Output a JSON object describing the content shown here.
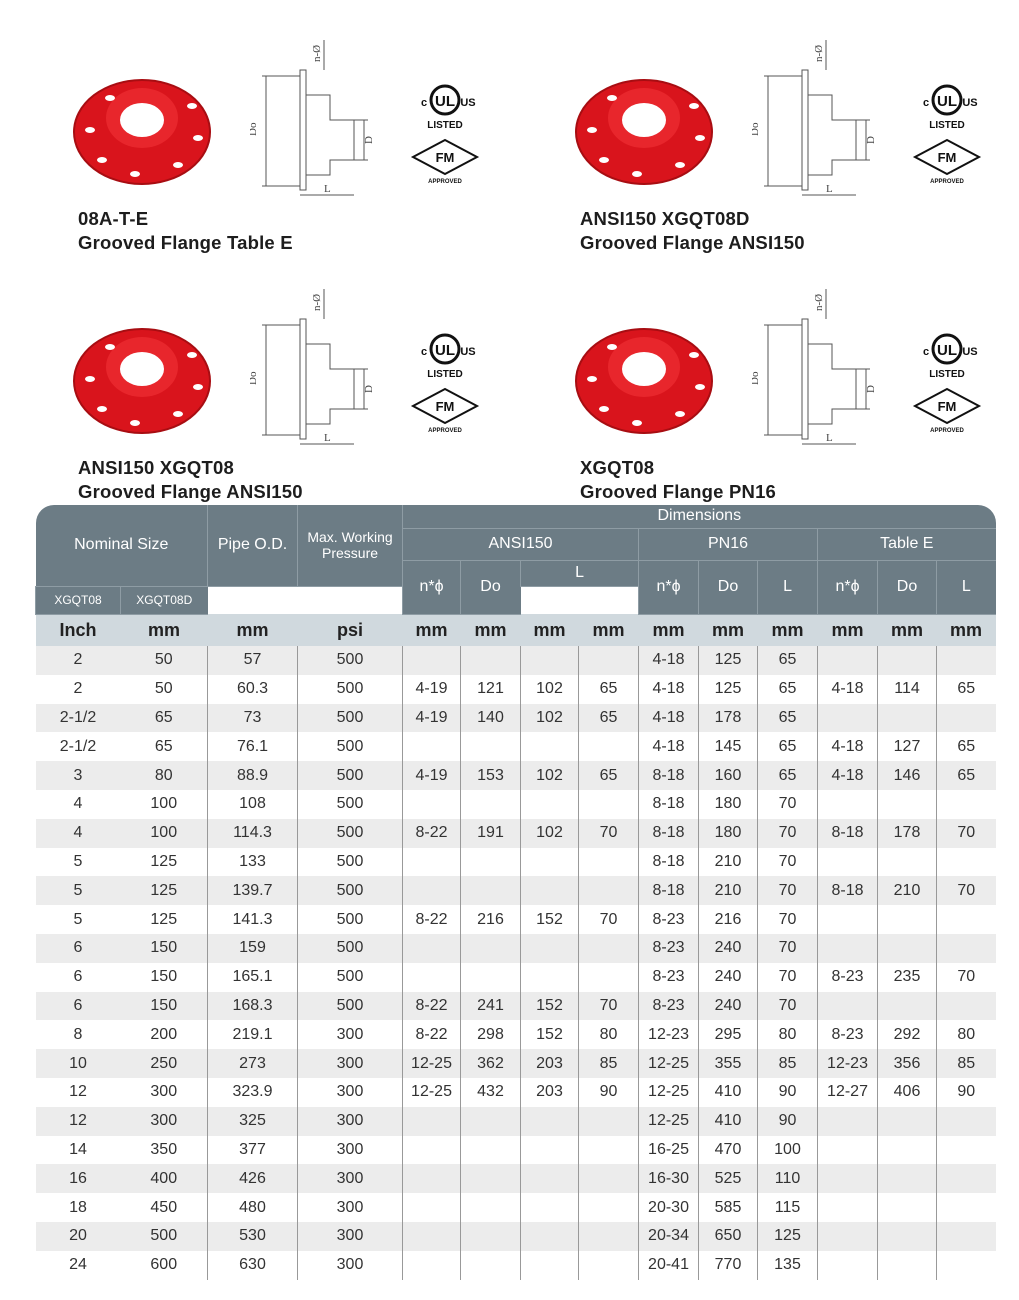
{
  "products": [
    {
      "code": "08A-T-E",
      "name": "Grooved Flange Table E"
    },
    {
      "code": "ANSI150 XGQT08D",
      "name": "Grooved Flange ANSI150"
    },
    {
      "code": "ANSI150 XGQT08",
      "name": "Grooved Flange ANSI150"
    },
    {
      "code": "XGQT08",
      "name": "Grooved Flange PN16"
    }
  ],
  "diagram_labels": {
    "holes": "n-Ø",
    "outer": "Do",
    "pipe": "D",
    "length": "L"
  },
  "logos": {
    "ul_c": "c",
    "ul_mark": "UL",
    "ul_us": "US",
    "ul_listed": "LISTED",
    "fm_mark": "FM",
    "fm_approved": "APPROVED"
  },
  "colors": {
    "header": "#6c7c85",
    "units_row": "#d0d9de",
    "alt_row": "#ececec",
    "product_red": "#e0161e"
  },
  "table": {
    "header": {
      "nominal_size": "Nominal Size",
      "pipe_od": "Pipe O.D.",
      "max_pressure": "Max. Working Pressure",
      "dimensions": "Dimensions",
      "ansi150": "ANSI150",
      "pn16": "PN16",
      "table_e": "Table E",
      "n_phi": "n*ϕ",
      "do": "Do",
      "l": "L",
      "xgqt08": "XGQT08",
      "xgqt08d": "XGQT08D"
    },
    "units": [
      "Inch",
      "mm",
      "mm",
      "psi",
      "mm",
      "mm",
      "mm",
      "mm",
      "mm",
      "mm",
      "mm",
      "mm",
      "mm",
      "mm"
    ],
    "rows": [
      [
        "2",
        "50",
        "57",
        "500",
        "",
        "",
        "",
        "",
        "4-18",
        "125",
        "65",
        "",
        "",
        ""
      ],
      [
        "2",
        "50",
        "60.3",
        "500",
        "4-19",
        "121",
        "102",
        "65",
        "4-18",
        "125",
        "65",
        "4-18",
        "114",
        "65"
      ],
      [
        "2-1/2",
        "65",
        "73",
        "500",
        "4-19",
        "140",
        "102",
        "65",
        "4-18",
        "178",
        "65",
        "",
        "",
        ""
      ],
      [
        "2-1/2",
        "65",
        "76.1",
        "500",
        "",
        "",
        "",
        "",
        "4-18",
        "145",
        "65",
        "4-18",
        "127",
        "65"
      ],
      [
        "3",
        "80",
        "88.9",
        "500",
        "4-19",
        "153",
        "102",
        "65",
        "8-18",
        "160",
        "65",
        "4-18",
        "146",
        "65"
      ],
      [
        "4",
        "100",
        "108",
        "500",
        "",
        "",
        "",
        "",
        "8-18",
        "180",
        "70",
        "",
        "",
        ""
      ],
      [
        "4",
        "100",
        "114.3",
        "500",
        "8-22",
        "191",
        "102",
        "70",
        "8-18",
        "180",
        "70",
        "8-18",
        "178",
        "70"
      ],
      [
        "5",
        "125",
        "133",
        "500",
        "",
        "",
        "",
        "",
        "8-18",
        "210",
        "70",
        "",
        "",
        ""
      ],
      [
        "5",
        "125",
        "139.7",
        "500",
        "",
        "",
        "",
        "",
        "8-18",
        "210",
        "70",
        "8-18",
        "210",
        "70"
      ],
      [
        "5",
        "125",
        "141.3",
        "500",
        "8-22",
        "216",
        "152",
        "70",
        "8-23",
        "216",
        "70",
        "",
        "",
        ""
      ],
      [
        "6",
        "150",
        "159",
        "500",
        "",
        "",
        "",
        "",
        "8-23",
        "240",
        "70",
        "",
        "",
        ""
      ],
      [
        "6",
        "150",
        "165.1",
        "500",
        "",
        "",
        "",
        "",
        "8-23",
        "240",
        "70",
        "8-23",
        "235",
        "70"
      ],
      [
        "6",
        "150",
        "168.3",
        "500",
        "8-22",
        "241",
        "152",
        "70",
        "8-23",
        "240",
        "70",
        "",
        "",
        ""
      ],
      [
        "8",
        "200",
        "219.1",
        "300",
        "8-22",
        "298",
        "152",
        "80",
        "12-23",
        "295",
        "80",
        "8-23",
        "292",
        "80"
      ],
      [
        "10",
        "250",
        "273",
        "300",
        "12-25",
        "362",
        "203",
        "85",
        "12-25",
        "355",
        "85",
        "12-23",
        "356",
        "85"
      ],
      [
        "12",
        "300",
        "323.9",
        "300",
        "12-25",
        "432",
        "203",
        "90",
        "12-25",
        "410",
        "90",
        "12-27",
        "406",
        "90"
      ],
      [
        "12",
        "300",
        "325",
        "300",
        "",
        "",
        "",
        "",
        "12-25",
        "410",
        "90",
        "",
        "",
        ""
      ],
      [
        "14",
        "350",
        "377",
        "300",
        "",
        "",
        "",
        "",
        "16-25",
        "470",
        "100",
        "",
        "",
        ""
      ],
      [
        "16",
        "400",
        "426",
        "300",
        "",
        "",
        "",
        "",
        "16-30",
        "525",
        "110",
        "",
        "",
        ""
      ],
      [
        "18",
        "450",
        "480",
        "300",
        "",
        "",
        "",
        "",
        "20-30",
        "585",
        "115",
        "",
        "",
        ""
      ],
      [
        "20",
        "500",
        "530",
        "300",
        "",
        "",
        "",
        "",
        "20-34",
        "650",
        "125",
        "",
        "",
        ""
      ],
      [
        "24",
        "600",
        "630",
        "300",
        "",
        "",
        "",
        "",
        "20-41",
        "770",
        "135",
        "",
        "",
        ""
      ]
    ]
  }
}
